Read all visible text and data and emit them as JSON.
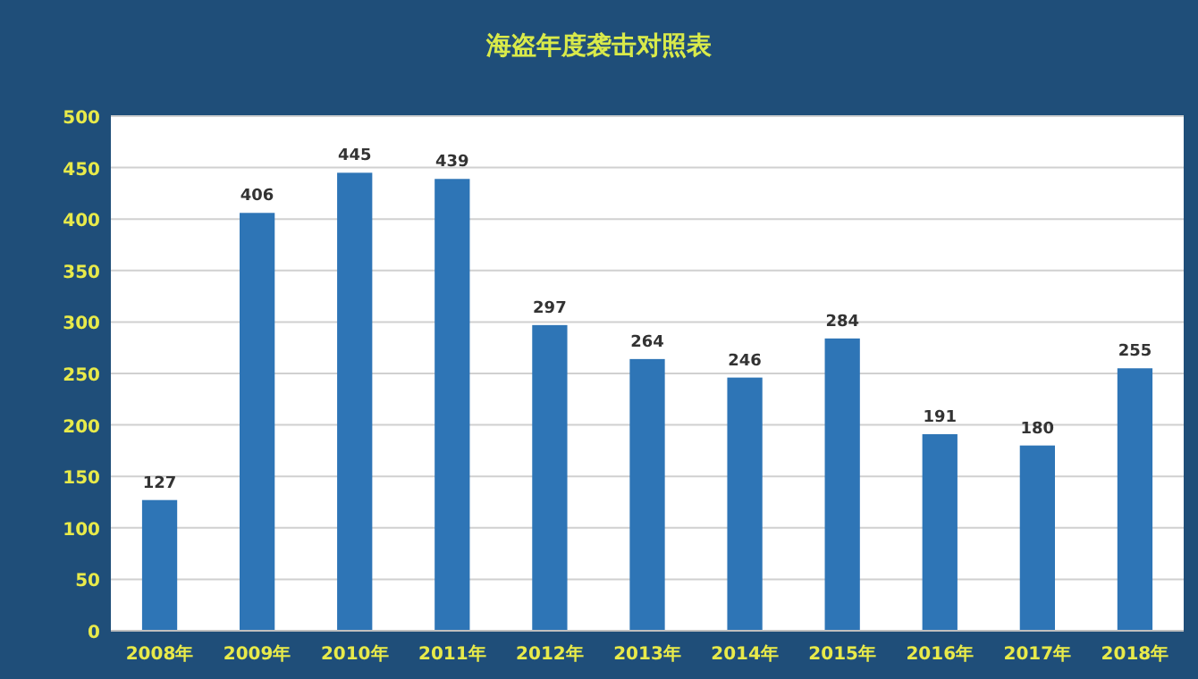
{
  "chart_data": {
    "type": "bar",
    "title": "海盗年度袭击对照表",
    "categories": [
      "2008年",
      "2009年",
      "2010年",
      "2011年",
      "2012年",
      "2013年",
      "2014年",
      "2015年",
      "2016年",
      "2017年",
      "2018年"
    ],
    "values": [
      127,
      406,
      445,
      439,
      297,
      264,
      246,
      284,
      191,
      180,
      255
    ],
    "color": "#2e75b6",
    "ylim": [
      0,
      500
    ],
    "yticks": [
      0,
      50,
      100,
      150,
      200,
      250,
      300,
      350,
      400,
      450,
      500
    ],
    "grid": "y",
    "data_labels": true
  }
}
